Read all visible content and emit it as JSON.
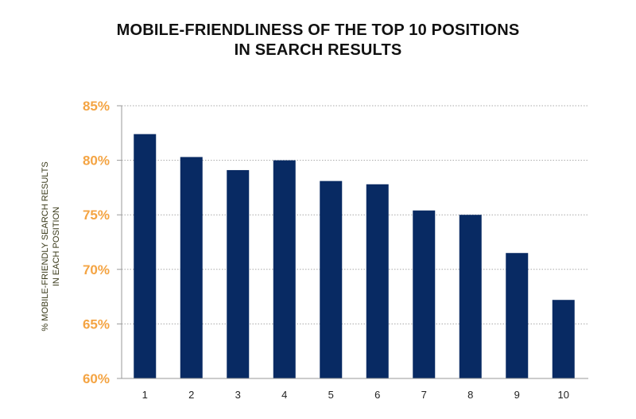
{
  "chart_data": {
    "type": "bar",
    "title_lines": [
      "MOBILE-FRIENDLINESS OF THE TOP 10 POSITIONS",
      "IN SEARCH RESULTS"
    ],
    "ylabel_lines": [
      "% MOBILE-FRIENDLY SEARCH RESULTS",
      "IN EACH POSITION"
    ],
    "xlabel": "",
    "categories": [
      "1",
      "2",
      "3",
      "4",
      "5",
      "6",
      "7",
      "8",
      "9",
      "10"
    ],
    "values": [
      82.4,
      80.3,
      79.1,
      80.0,
      78.1,
      77.8,
      75.4,
      75.0,
      71.5,
      67.2
    ],
    "ylim": [
      60,
      85
    ],
    "yticks": [
      60,
      65,
      70,
      75,
      80,
      85
    ],
    "ytick_labels": [
      "60%",
      "65%",
      "70%",
      "75%",
      "80%",
      "85%"
    ],
    "grid": true,
    "grid_style": "dotted",
    "legend": "none",
    "colors": {
      "bar": "#082a63",
      "ytick": "#f4a443",
      "grid": "#a8a8a8",
      "axis": "#9a9a9a"
    }
  }
}
